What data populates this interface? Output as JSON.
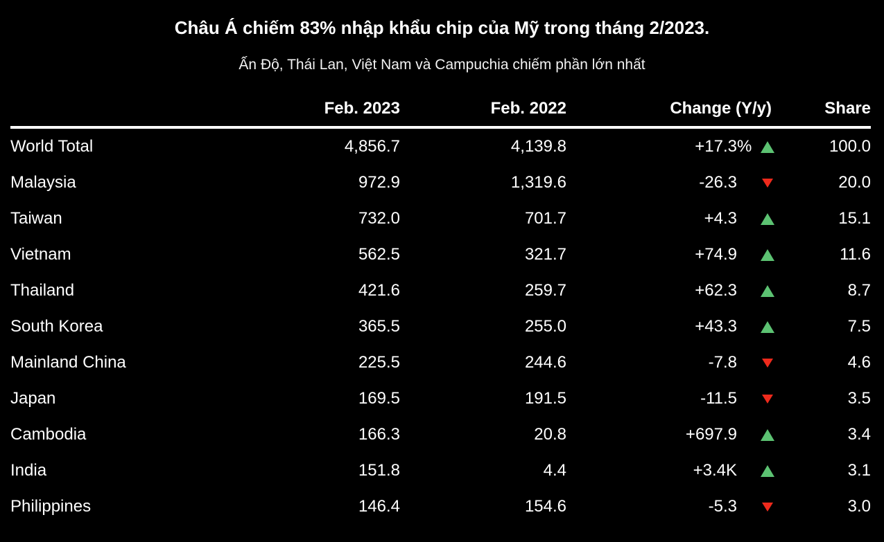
{
  "colors": {
    "background": "#000000",
    "text": "#ffffff",
    "positive": "#5cc272",
    "negative": "#ee2a1c"
  },
  "chart_data": {
    "type": "table",
    "title": "Châu Á chiếm 83% nhập khẩu chip của Mỹ trong tháng 2/2023.",
    "subtitle": "Ấn Độ, Thái Lan, Việt Nam và Campuchia chiếm phần lớn nhất",
    "columns": [
      "",
      "Feb. 2023",
      "Feb. 2022",
      "Change (Y/y)",
      "Share"
    ],
    "rows": [
      {
        "name": "World Total",
        "feb_2023": "4,856.7",
        "feb_2022": "4,139.8",
        "change": "+17.3",
        "change_suffix": "%",
        "direction": "up",
        "share": "100.0"
      },
      {
        "name": "Malaysia",
        "feb_2023": "972.9",
        "feb_2022": "1,319.6",
        "change": "-26.3",
        "change_suffix": "",
        "direction": "down",
        "share": "20.0"
      },
      {
        "name": "Taiwan",
        "feb_2023": "732.0",
        "feb_2022": "701.7",
        "change": "+4.3",
        "change_suffix": "",
        "direction": "up",
        "share": "15.1"
      },
      {
        "name": "Vietnam",
        "feb_2023": "562.5",
        "feb_2022": "321.7",
        "change": "+74.9",
        "change_suffix": "",
        "direction": "up",
        "share": "11.6"
      },
      {
        "name": "Thailand",
        "feb_2023": "421.6",
        "feb_2022": "259.7",
        "change": "+62.3",
        "change_suffix": "",
        "direction": "up",
        "share": "8.7"
      },
      {
        "name": "South Korea",
        "feb_2023": "365.5",
        "feb_2022": "255.0",
        "change": "+43.3",
        "change_suffix": "",
        "direction": "up",
        "share": "7.5"
      },
      {
        "name": "Mainland China",
        "feb_2023": "225.5",
        "feb_2022": "244.6",
        "change": "-7.8",
        "change_suffix": "",
        "direction": "down",
        "share": "4.6"
      },
      {
        "name": "Japan",
        "feb_2023": "169.5",
        "feb_2022": "191.5",
        "change": "-11.5",
        "change_suffix": "",
        "direction": "down",
        "share": "3.5"
      },
      {
        "name": "Cambodia",
        "feb_2023": "166.3",
        "feb_2022": "20.8",
        "change": "+697.9",
        "change_suffix": "",
        "direction": "up",
        "share": "3.4"
      },
      {
        "name": "India",
        "feb_2023": "151.8",
        "feb_2022": "4.4",
        "change": "+3.4K",
        "change_suffix": "",
        "direction": "up",
        "share": "3.1"
      },
      {
        "name": "Philippines",
        "feb_2023": "146.4",
        "feb_2022": "154.6",
        "change": "-5.3",
        "change_suffix": "",
        "direction": "down",
        "share": "3.0"
      }
    ]
  }
}
